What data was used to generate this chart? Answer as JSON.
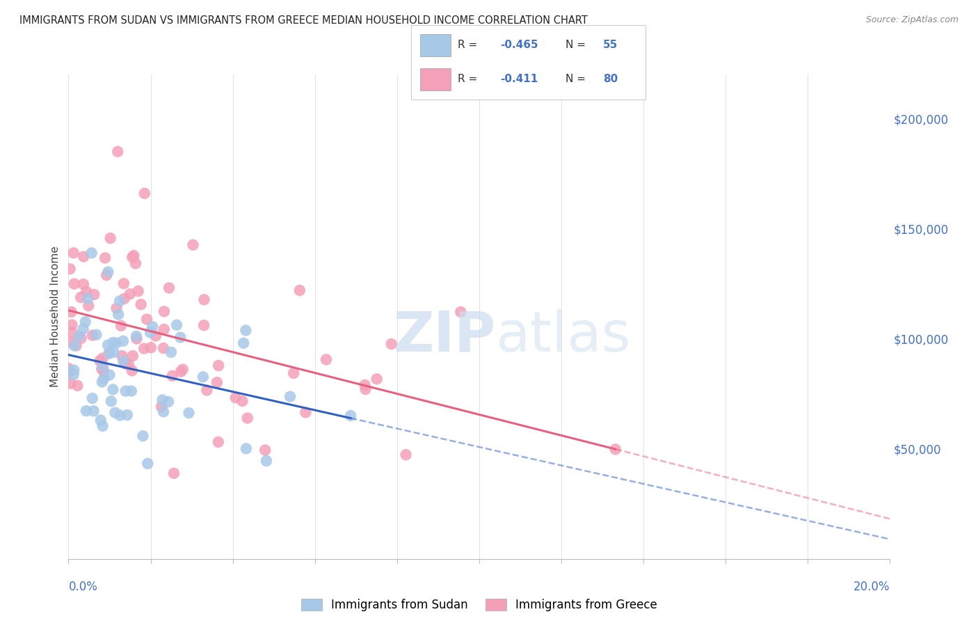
{
  "title": "IMMIGRANTS FROM SUDAN VS IMMIGRANTS FROM GREECE MEDIAN HOUSEHOLD INCOME CORRELATION CHART",
  "source": "Source: ZipAtlas.com",
  "ylabel": "Median Household Income",
  "yticks": [
    50000,
    100000,
    150000,
    200000
  ],
  "ytick_labels": [
    "$50,000",
    "$100,000",
    "$150,000",
    "$200,000"
  ],
  "xlim": [
    0.0,
    0.2
  ],
  "ylim": [
    0,
    220000
  ],
  "color_sudan": "#a8c8e8",
  "color_greece": "#f4a0b8",
  "color_sudan_line": "#3060c0",
  "color_greece_line": "#e86080",
  "watermark_zip": "ZIP",
  "watermark_atlas": "atlas",
  "sudan_R": -0.465,
  "sudan_N": 55,
  "greece_R": -0.411,
  "greece_N": 80,
  "legend_sudan_r": "-0.465",
  "legend_sudan_n": "55",
  "legend_greece_r": "-0.411",
  "legend_greece_n": "80"
}
